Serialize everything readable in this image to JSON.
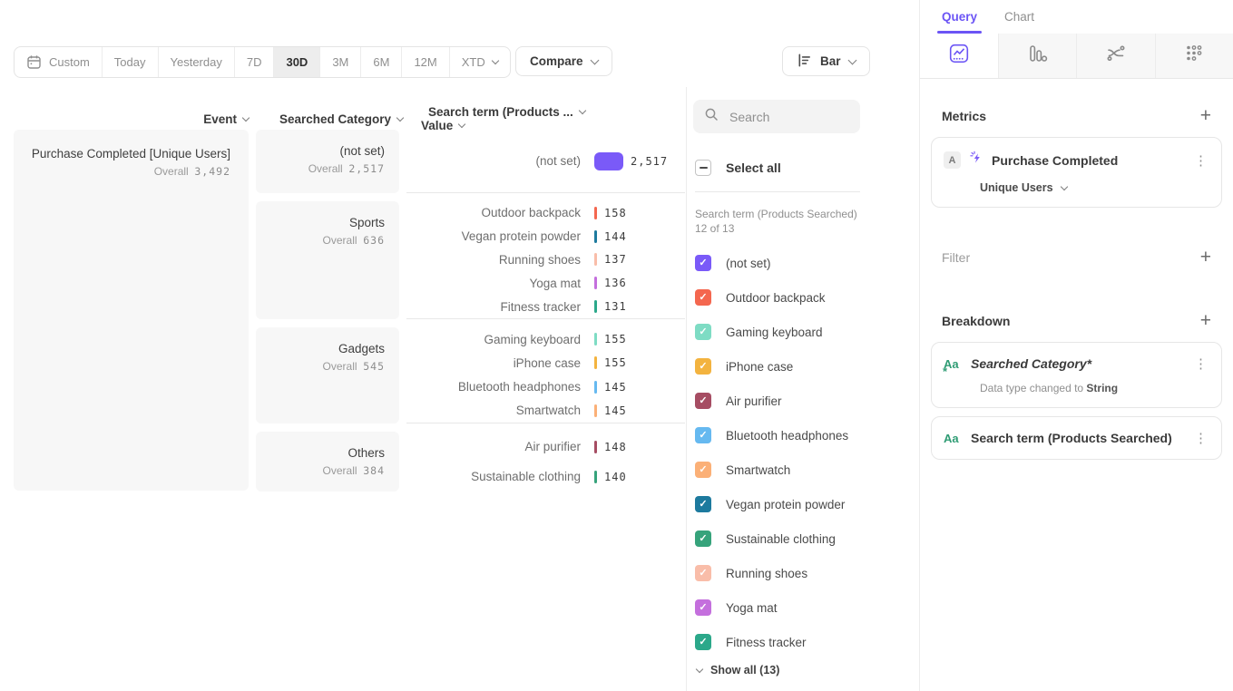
{
  "colors": {
    "accent": "#6b54f5",
    "bar_purple": "#7a5af8",
    "box_gray": "#f7f7f7"
  },
  "toolbar": {
    "ranges": [
      {
        "label": "Custom",
        "icon": "calendar"
      },
      {
        "label": "Today"
      },
      {
        "label": "Yesterday"
      },
      {
        "label": "7D"
      },
      {
        "label": "30D"
      },
      {
        "label": "3M"
      },
      {
        "label": "6M"
      },
      {
        "label": "12M"
      },
      {
        "label": "XTD",
        "chevron": true
      }
    ],
    "selected_range": "30D",
    "compare_label": "Compare",
    "chart_type_label": "Bar"
  },
  "table": {
    "columns": [
      "Event",
      "Searched Category",
      "Search term (Products ...",
      "Value"
    ],
    "event": {
      "name": "Purchase Completed [Unique Users]",
      "overall_label": "Overall",
      "overall": "3,492"
    },
    "overall_label": "Overall",
    "groups": [
      {
        "category": "(not set)",
        "overall": "2,517",
        "rows": [
          {
            "term": "(not set)",
            "value": "2,517",
            "color": "#7a5af8"
          }
        ]
      },
      {
        "category": "Sports",
        "overall": "636",
        "rows": [
          {
            "term": "Outdoor backpack",
            "value": "158",
            "color": "#f4674f"
          },
          {
            "term": "Vegan protein powder",
            "value": "144",
            "color": "#1d7a9e"
          },
          {
            "term": "Running shoes",
            "value": "137",
            "color": "#f9bda9"
          },
          {
            "term": "Yoga mat",
            "value": "136",
            "color": "#c46fdd"
          },
          {
            "term": "Fitness tracker",
            "value": "131",
            "color": "#2ba88a"
          }
        ]
      },
      {
        "category": "Gadgets",
        "overall": "545",
        "rows": [
          {
            "term": "Gaming keyboard",
            "value": "155",
            "color": "#7edcc4"
          },
          {
            "term": "iPhone case",
            "value": "155",
            "color": "#f3b33f"
          },
          {
            "term": "Bluetooth headphones",
            "value": "145",
            "color": "#66b9f0"
          },
          {
            "term": "Smartwatch",
            "value": "145",
            "color": "#fbb077"
          }
        ]
      },
      {
        "category": "Others",
        "overall": "384",
        "rows": [
          {
            "term": "Air purifier",
            "value": "148",
            "color": "#a64d63"
          },
          {
            "term": "Sustainable clothing",
            "value": "140",
            "color": "#36a37b"
          }
        ]
      }
    ]
  },
  "legend": {
    "search_placeholder": "Search",
    "select_all_label": "Select all",
    "list_label": "Search term (Products Searched) 12 of 13",
    "items": [
      {
        "label": "(not set)",
        "color": "#7a5af8"
      },
      {
        "label": "Outdoor backpack",
        "color": "#f4674f"
      },
      {
        "label": "Gaming keyboard",
        "color": "#7edcc4"
      },
      {
        "label": "iPhone case",
        "color": "#f3b33f"
      },
      {
        "label": "Air purifier",
        "color": "#a64d63"
      },
      {
        "label": "Bluetooth headphones",
        "color": "#66b9f0"
      },
      {
        "label": "Smartwatch",
        "color": "#fbb077"
      },
      {
        "label": "Vegan protein powder",
        "color": "#1d7a9e"
      },
      {
        "label": "Sustainable clothing",
        "color": "#36a37b"
      },
      {
        "label": "Running shoes",
        "color": "#f9bda9"
      },
      {
        "label": "Yoga mat",
        "color": "#c46fdd"
      },
      {
        "label": "Fitness tracker",
        "color": "#2ba88a",
        "pattern": true
      }
    ],
    "show_all_label": "Show all (13)"
  },
  "sidebar": {
    "tabs": {
      "query": "Query",
      "chart": "Chart"
    },
    "metrics": {
      "heading": "Metrics",
      "badge": "A",
      "event_name": "Purchase Completed",
      "aggregation": "Unique Users"
    },
    "filter": {
      "heading": "Filter"
    },
    "breakdown": {
      "heading": "Breakdown",
      "item1": {
        "icon": "Aa",
        "label": "Searched Category*",
        "note_prefix": "Data type changed to ",
        "note_bold": "String"
      },
      "item2": {
        "icon": "Aa",
        "label": "Search term (Products Searched)"
      }
    }
  },
  "chart_data": {
    "type": "bar",
    "title": "Purchase Completed [Unique Users] — 30D, broken down by Searched Category and Search term (Products Searched)",
    "overall_total": 3492,
    "groups": [
      {
        "category": "(not set)",
        "overall": 2517,
        "terms": [
          {
            "term": "(not set)",
            "value": 2517
          }
        ]
      },
      {
        "category": "Sports",
        "overall": 636,
        "terms": [
          {
            "term": "Outdoor backpack",
            "value": 158
          },
          {
            "term": "Vegan protein powder",
            "value": 144
          },
          {
            "term": "Running shoes",
            "value": 137
          },
          {
            "term": "Yoga mat",
            "value": 136
          },
          {
            "term": "Fitness tracker",
            "value": 131
          }
        ]
      },
      {
        "category": "Gadgets",
        "overall": 545,
        "terms": [
          {
            "term": "Gaming keyboard",
            "value": 155
          },
          {
            "term": "iPhone case",
            "value": 155
          },
          {
            "term": "Bluetooth headphones",
            "value": 145
          },
          {
            "term": "Smartwatch",
            "value": 145
          }
        ]
      },
      {
        "category": "Others",
        "overall": 384,
        "terms": [
          {
            "term": "Air purifier",
            "value": 148
          },
          {
            "term": "Sustainable clothing",
            "value": 140
          }
        ]
      }
    ]
  }
}
